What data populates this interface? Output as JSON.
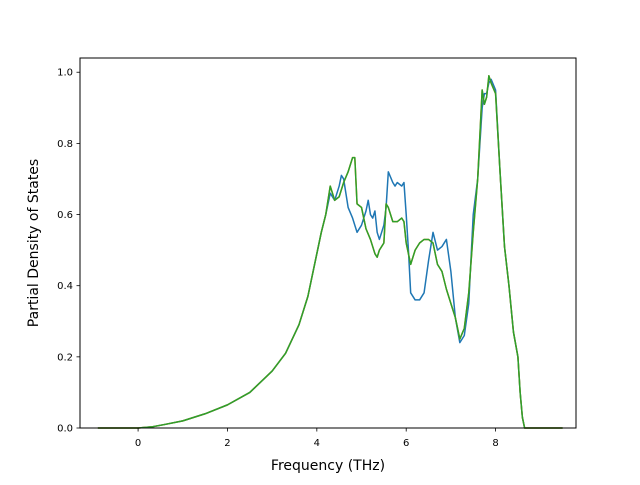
{
  "chart_data": {
    "type": "line",
    "title": "",
    "xlabel": "Frequency (THz)",
    "ylabel": "Partial Density of States",
    "xlim": [
      -1.3,
      9.8
    ],
    "ylim": [
      0.0,
      1.04
    ],
    "xticks": [
      0,
      2,
      4,
      6,
      8
    ],
    "xtick_labels": [
      "0",
      "2",
      "4",
      "6",
      "8"
    ],
    "yticks": [
      0.0,
      0.2,
      0.4,
      0.6,
      0.8,
      1.0
    ],
    "ytick_labels": [
      "0.0",
      "0.2",
      "0.4",
      "0.6",
      "0.8",
      "1.0"
    ],
    "grid": false,
    "series": [
      {
        "color": "#1f77b4",
        "x": [
          -0.9,
          -0.5,
          0.0,
          0.3,
          0.6,
          1.0,
          1.5,
          2.0,
          2.5,
          3.0,
          3.3,
          3.6,
          3.8,
          4.0,
          4.1,
          4.2,
          4.3,
          4.4,
          4.5,
          4.55,
          4.6,
          4.7,
          4.8,
          4.9,
          5.0,
          5.1,
          5.15,
          5.2,
          5.25,
          5.3,
          5.35,
          5.4,
          5.5,
          5.55,
          5.6,
          5.7,
          5.75,
          5.8,
          5.9,
          5.95,
          6.0,
          6.05,
          6.1,
          6.2,
          6.3,
          6.4,
          6.5,
          6.6,
          6.7,
          6.8,
          6.9,
          7.0,
          7.1,
          7.2,
          7.3,
          7.4,
          7.5,
          7.6,
          7.7,
          7.75,
          7.8,
          7.85,
          7.9,
          8.0,
          8.1,
          8.2,
          8.3,
          8.4,
          8.5,
          8.55,
          8.6,
          8.65,
          8.7,
          9.0,
          9.5
        ],
        "y": [
          0.0,
          0.0,
          0.0,
          0.003,
          0.01,
          0.02,
          0.04,
          0.065,
          0.1,
          0.16,
          0.21,
          0.29,
          0.37,
          0.49,
          0.55,
          0.6,
          0.66,
          0.64,
          0.68,
          0.71,
          0.7,
          0.62,
          0.59,
          0.55,
          0.57,
          0.61,
          0.64,
          0.6,
          0.59,
          0.61,
          0.55,
          0.53,
          0.57,
          0.62,
          0.72,
          0.69,
          0.68,
          0.69,
          0.68,
          0.69,
          0.6,
          0.5,
          0.38,
          0.36,
          0.36,
          0.38,
          0.47,
          0.55,
          0.5,
          0.51,
          0.53,
          0.44,
          0.31,
          0.24,
          0.26,
          0.35,
          0.6,
          0.7,
          0.9,
          0.94,
          0.94,
          0.97,
          0.98,
          0.95,
          0.72,
          0.51,
          0.4,
          0.27,
          0.2,
          0.1,
          0.03,
          0.0,
          0.0,
          0.0,
          0.0
        ]
      },
      {
        "color": "#ff7f0e",
        "x": [
          -0.9,
          -0.5,
          0.0,
          0.3,
          0.6,
          1.0,
          1.5,
          2.0,
          2.5,
          3.0,
          3.3,
          3.6,
          3.8,
          4.0,
          4.1,
          4.2,
          4.3,
          4.4,
          4.5,
          4.6,
          4.7,
          4.75,
          4.8,
          4.85,
          4.9,
          5.0,
          5.1,
          5.2,
          5.3,
          5.35,
          5.4,
          5.5,
          5.55,
          5.6,
          5.7,
          5.8,
          5.9,
          5.95,
          6.0,
          6.1,
          6.2,
          6.3,
          6.4,
          6.5,
          6.6,
          6.7,
          6.8,
          6.9,
          7.0,
          7.1,
          7.2,
          7.3,
          7.4,
          7.5,
          7.6,
          7.7,
          7.75,
          7.8,
          7.85,
          7.9,
          8.0,
          8.1,
          8.2,
          8.3,
          8.4,
          8.5,
          8.55,
          8.6,
          8.65,
          8.7,
          9.0,
          9.5
        ],
        "y": [
          0.0,
          0.0,
          0.0,
          0.003,
          0.01,
          0.02,
          0.04,
          0.065,
          0.1,
          0.16,
          0.21,
          0.29,
          0.37,
          0.49,
          0.55,
          0.6,
          0.68,
          0.64,
          0.65,
          0.69,
          0.72,
          0.74,
          0.76,
          0.76,
          0.63,
          0.62,
          0.56,
          0.53,
          0.49,
          0.48,
          0.5,
          0.52,
          0.63,
          0.62,
          0.58,
          0.58,
          0.59,
          0.58,
          0.52,
          0.46,
          0.5,
          0.52,
          0.53,
          0.53,
          0.52,
          0.46,
          0.44,
          0.39,
          0.35,
          0.31,
          0.25,
          0.28,
          0.38,
          0.55,
          0.7,
          0.95,
          0.91,
          0.93,
          0.99,
          0.97,
          0.94,
          0.72,
          0.51,
          0.4,
          0.27,
          0.2,
          0.1,
          0.03,
          0.0,
          0.0,
          0.0,
          0.0
        ]
      },
      {
        "color": "#2ca02c",
        "x": [
          -0.9,
          -0.5,
          0.0,
          0.3,
          0.6,
          1.0,
          1.5,
          2.0,
          2.5,
          3.0,
          3.3,
          3.6,
          3.8,
          4.0,
          4.1,
          4.2,
          4.3,
          4.4,
          4.5,
          4.6,
          4.7,
          4.75,
          4.8,
          4.85,
          4.9,
          5.0,
          5.1,
          5.2,
          5.3,
          5.35,
          5.4,
          5.5,
          5.55,
          5.6,
          5.7,
          5.8,
          5.9,
          5.95,
          6.0,
          6.1,
          6.2,
          6.3,
          6.4,
          6.5,
          6.6,
          6.7,
          6.8,
          6.9,
          7.0,
          7.1,
          7.2,
          7.3,
          7.4,
          7.5,
          7.6,
          7.7,
          7.75,
          7.8,
          7.85,
          7.9,
          8.0,
          8.1,
          8.2,
          8.3,
          8.4,
          8.5,
          8.55,
          8.6,
          8.65,
          8.7,
          9.0,
          9.5
        ],
        "y": [
          0.0,
          0.0,
          0.0,
          0.003,
          0.01,
          0.02,
          0.04,
          0.065,
          0.1,
          0.16,
          0.21,
          0.29,
          0.37,
          0.49,
          0.55,
          0.6,
          0.68,
          0.64,
          0.65,
          0.69,
          0.72,
          0.74,
          0.76,
          0.76,
          0.63,
          0.62,
          0.56,
          0.53,
          0.49,
          0.48,
          0.5,
          0.52,
          0.63,
          0.62,
          0.58,
          0.58,
          0.59,
          0.58,
          0.52,
          0.46,
          0.5,
          0.52,
          0.53,
          0.53,
          0.52,
          0.46,
          0.44,
          0.39,
          0.35,
          0.31,
          0.25,
          0.28,
          0.38,
          0.55,
          0.7,
          0.95,
          0.91,
          0.93,
          0.99,
          0.97,
          0.94,
          0.72,
          0.51,
          0.4,
          0.27,
          0.2,
          0.1,
          0.03,
          0.0,
          0.0,
          0.0,
          0.0
        ]
      }
    ]
  }
}
